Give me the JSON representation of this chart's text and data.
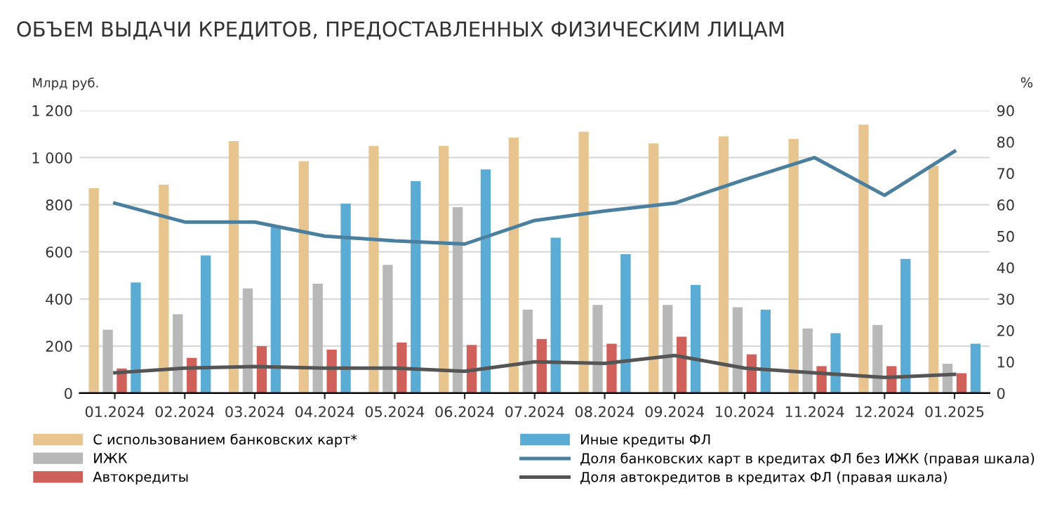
{
  "chart_data": {
    "type": "bar",
    "title": "ОБЪЕМ ВЫДАЧИ КРЕДИТОВ, ПРЕДОСТАВЛЕННЫХ ФИЗИЧЕСКИМ ЛИЦАМ",
    "ylabel": "Млрд руб.",
    "y2label": "%",
    "categories": [
      "01.2024",
      "02.2024",
      "03.2024",
      "04.2024",
      "05.2024",
      "06.2024",
      "07.2024",
      "08.2024",
      "09.2024",
      "10.2024",
      "11.2024",
      "12.2024",
      "01.2025"
    ],
    "series": [
      {
        "name": "С использованием банковских карт*",
        "color": "#e8c58f",
        "values": [
          870,
          885,
          1070,
          985,
          1050,
          1050,
          1085,
          1110,
          1060,
          1090,
          1080,
          1140,
          965
        ]
      },
      {
        "name": "ИЖК",
        "color": "#b8b8b8",
        "values": [
          270,
          335,
          445,
          465,
          545,
          790,
          355,
          375,
          375,
          365,
          275,
          290,
          125
        ]
      },
      {
        "name": "Автокредиты",
        "color": "#d0605a",
        "values": [
          105,
          150,
          200,
          185,
          215,
          205,
          230,
          210,
          240,
          165,
          115,
          115,
          85
        ]
      },
      {
        "name": "Иные кредиты ФЛ",
        "color": "#5aacd4",
        "values": [
          470,
          585,
          705,
          805,
          900,
          950,
          660,
          590,
          460,
          355,
          255,
          570,
          210
        ]
      },
      {
        "name": "Доля банковских карт в кредитах ФЛ без ИЖК (правая шкала)",
        "type": "line",
        "axis": "y2",
        "color": "#4a7fa0",
        "values": [
          60.5,
          54.5,
          54.5,
          50,
          48.5,
          47.5,
          55,
          58,
          60.5,
          68,
          75,
          63,
          77
        ]
      },
      {
        "name": "Доля автокредитов в кредитах ФЛ (правая шкала)",
        "type": "line",
        "axis": "y2",
        "color": "#555555",
        "values": [
          6.5,
          8,
          8.5,
          8,
          8,
          7,
          10,
          9.5,
          12,
          8,
          6.5,
          5,
          6
        ]
      }
    ],
    "ylim": [
      0,
      1200
    ],
    "yticks": [
      0,
      200,
      400,
      600,
      800,
      {
        "value": 1000,
        "label": "1 000"
      },
      {
        "value": 1200,
        "label": "1 200"
      }
    ],
    "y2lim": [
      0,
      90
    ],
    "y2ticks": [
      0,
      10,
      20,
      30,
      40,
      50,
      60,
      70,
      80,
      90
    ],
    "grid": "y",
    "legend": "bottom"
  }
}
